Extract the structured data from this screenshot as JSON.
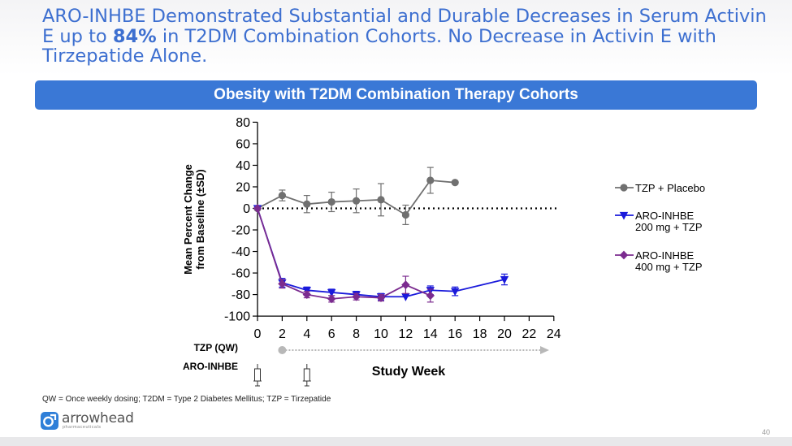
{
  "slide": {
    "title_part1": "ARO-INHBE Demonstrated Substantial and Durable Decreases in Serum Activin E up to ",
    "title_highlight": "84%",
    "title_part2": " in T2DM Combination Cohorts. No Decrease in Activin E with Tirzepatide Alone.",
    "banner": "Obesity with T2DM Combination Therapy Cohorts",
    "footnote": "QW = Once weekly dosing; T2DM = Type 2 Diabetes Mellitus; TZP = Tirzepatide",
    "logo_text": "arrowhead",
    "logo_sub": "pharmaceuticals",
    "page_number": "40",
    "colors": {
      "title": "#3d6fd0",
      "banner": "#3a78d6"
    }
  },
  "chart_data": {
    "type": "line",
    "title": "",
    "ylabel_line1": "Mean Percent Change",
    "ylabel_line2": "from Baseline (±SD)",
    "xlabel": "Study Week",
    "ylim": [
      -100,
      80
    ],
    "yticks": [
      80,
      60,
      40,
      20,
      0,
      -20,
      -40,
      -60,
      -80,
      -100
    ],
    "xlim": [
      0,
      24
    ],
    "xticks": [
      0,
      2,
      4,
      6,
      8,
      10,
      12,
      14,
      16,
      18,
      20,
      22,
      24
    ],
    "reference_line_y": 0,
    "legend_position": "right",
    "series": [
      {
        "name": "TZP + Placebo",
        "color": "#707070",
        "marker": "circle",
        "x": [
          0,
          2,
          4,
          6,
          8,
          10,
          12,
          14,
          16
        ],
        "y": [
          0,
          12,
          4,
          6,
          7,
          8,
          -6,
          26,
          24
        ],
        "err": [
          0,
          5,
          8,
          9,
          11,
          15,
          9,
          12,
          0
        ]
      },
      {
        "name": "ARO-INHBE\n200 mg + TZP",
        "legend_lines": [
          "ARO-INHBE",
          "200 mg + TZP"
        ],
        "color": "#1a1adb",
        "marker": "triangle-down",
        "x": [
          0,
          2,
          4,
          6,
          8,
          10,
          12,
          14,
          16,
          20
        ],
        "y": [
          0,
          -69,
          -76,
          -78,
          -80,
          -82,
          -82,
          -76,
          -77,
          -66
        ],
        "err": [
          0,
          4,
          3,
          3,
          3,
          3,
          0,
          4,
          4,
          5
        ]
      },
      {
        "name": "ARO-INHBE\n400 mg + TZP",
        "legend_lines": [
          "ARO-INHBE",
          "400 mg + TZP"
        ],
        "color": "#7b2b8f",
        "marker": "diamond",
        "x": [
          0,
          2,
          4,
          6,
          8,
          10,
          12,
          14
        ],
        "y": [
          0,
          -70,
          -80,
          -84,
          -82,
          -83,
          -71,
          -81
        ],
        "err": [
          0,
          4,
          3,
          3,
          3,
          3,
          8,
          6
        ]
      }
    ],
    "dosing": {
      "tzp_label": "TZP (QW)",
      "tzp_start_week": 2,
      "tzp_end_week": 24,
      "aro_label": "ARO-INHBE",
      "aro_weeks": [
        0,
        4
      ]
    }
  }
}
